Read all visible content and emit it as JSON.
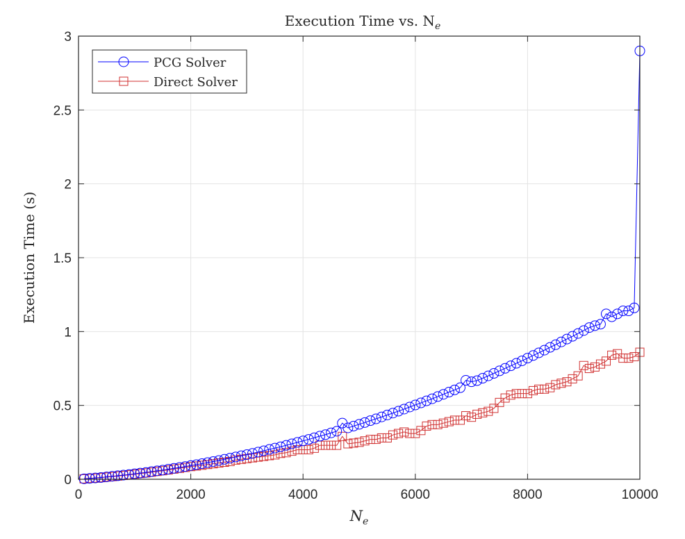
{
  "chart_data": {
    "type": "line",
    "title": "Execution Time vs. N",
    "title_subscript": "e",
    "xlabel": "N",
    "xlabel_subscript": "e",
    "ylabel": "Execution Time (s)",
    "xlim": [
      0,
      10000
    ],
    "ylim": [
      0,
      3
    ],
    "xticks": [
      0,
      2000,
      4000,
      6000,
      8000,
      10000
    ],
    "xtick_labels": [
      "0",
      "2000",
      "4000",
      "6000",
      "8000",
      "10000"
    ],
    "yticks": [
      0,
      0.5,
      1,
      1.5,
      2,
      2.5,
      3
    ],
    "ytick_labels": [
      "0",
      "0.5",
      "1",
      "1.5",
      "2",
      "2.5",
      "3"
    ],
    "grid": true,
    "legend_position": "top-left",
    "x_start": 100,
    "x_step": 100,
    "series": [
      {
        "name": "PCG Solver",
        "color": "#0000ff",
        "marker": "circle",
        "values": [
          0.003,
          0.006,
          0.009,
          0.012,
          0.016,
          0.02,
          0.024,
          0.028,
          0.032,
          0.037,
          0.042,
          0.046,
          0.052,
          0.057,
          0.062,
          0.068,
          0.074,
          0.08,
          0.086,
          0.093,
          0.099,
          0.106,
          0.113,
          0.12,
          0.127,
          0.135,
          0.143,
          0.151,
          0.159,
          0.167,
          0.175,
          0.184,
          0.193,
          0.202,
          0.211,
          0.22,
          0.23,
          0.24,
          0.25,
          0.26,
          0.27,
          0.281,
          0.292,
          0.302,
          0.314,
          0.325,
          0.38,
          0.348,
          0.36,
          0.372,
          0.384,
          0.397,
          0.409,
          0.422,
          0.435,
          0.448,
          0.461,
          0.475,
          0.489,
          0.503,
          0.517,
          0.531,
          0.545,
          0.56,
          0.575,
          0.59,
          0.605,
          0.62,
          0.67,
          0.66,
          0.668,
          0.684,
          0.7,
          0.717,
          0.734,
          0.751,
          0.768,
          0.785,
          0.802,
          0.82,
          0.838,
          0.856,
          0.874,
          0.893,
          0.911,
          0.93,
          0.949,
          0.968,
          0.987,
          1.007,
          1.027,
          1.04,
          1.05,
          1.12,
          1.1,
          1.12,
          1.14,
          1.14,
          1.16,
          2.9
        ]
      },
      {
        "name": "Direct Solver",
        "color": "#d03030",
        "marker": "square",
        "values": [
          0.003,
          0.006,
          0.008,
          0.011,
          0.015,
          0.018,
          0.022,
          0.026,
          0.03,
          0.034,
          0.039,
          0.043,
          0.048,
          0.053,
          0.058,
          0.063,
          0.069,
          0.074,
          0.08,
          0.086,
          0.09,
          0.095,
          0.1,
          0.105,
          0.11,
          0.115,
          0.12,
          0.13,
          0.135,
          0.14,
          0.145,
          0.15,
          0.155,
          0.16,
          0.165,
          0.175,
          0.18,
          0.19,
          0.2,
          0.2,
          0.2,
          0.21,
          0.23,
          0.23,
          0.23,
          0.23,
          0.29,
          0.24,
          0.245,
          0.25,
          0.26,
          0.27,
          0.27,
          0.28,
          0.28,
          0.3,
          0.31,
          0.32,
          0.31,
          0.31,
          0.33,
          0.36,
          0.37,
          0.37,
          0.38,
          0.39,
          0.4,
          0.4,
          0.43,
          0.42,
          0.44,
          0.45,
          0.46,
          0.48,
          0.52,
          0.55,
          0.57,
          0.58,
          0.58,
          0.58,
          0.6,
          0.61,
          0.61,
          0.62,
          0.64,
          0.65,
          0.66,
          0.68,
          0.7,
          0.77,
          0.75,
          0.76,
          0.78,
          0.8,
          0.84,
          0.85,
          0.82,
          0.82,
          0.83,
          0.86
        ]
      }
    ]
  }
}
